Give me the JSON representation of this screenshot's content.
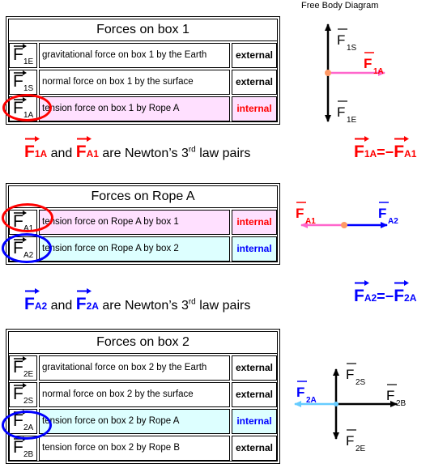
{
  "fbd_title": "Free Body Diagram",
  "box1": {
    "title": "Forces on box 1",
    "rows": [
      {
        "sub": "1E",
        "desc": "gravitational force on box 1 by the Earth",
        "kind": "external"
      },
      {
        "sub": "1S",
        "desc": "normal force on box 1 by the surface",
        "kind": "external"
      },
      {
        "sub": "1A",
        "desc": "tension force on box 1 by Rope A",
        "kind": "internal"
      }
    ]
  },
  "ropeA": {
    "title": "Forces on Rope A",
    "rows": [
      {
        "sub": "A1",
        "desc": "tension force on Rope A by box 1",
        "kind": "internal"
      },
      {
        "sub": "A2",
        "desc": "tension force on Rope A by box 2",
        "kind": "internal"
      }
    ]
  },
  "box2": {
    "title": "Forces on box 2",
    "rows": [
      {
        "sub": "2E",
        "desc": "gravitational force on box 2 by the Earth",
        "kind": "external"
      },
      {
        "sub": "2S",
        "desc": "normal force on box 2 by the surface",
        "kind": "external"
      },
      {
        "sub": "2A",
        "desc": "tension force on box 2 by Rope A",
        "kind": "internal"
      },
      {
        "sub": "2B",
        "desc": "tension force on box 2 by Rope B",
        "kind": "external"
      }
    ]
  },
  "law1": {
    "left_sub": "1A",
    "right_sub": "A1",
    "and": "and",
    "text": "are Newton’s 3",
    "sup": "rd",
    "tail": "law pairs"
  },
  "law2": {
    "left_sub": "A2",
    "right_sub": "2A",
    "and": "and",
    "text": "are Newton’s 3",
    "sup": "rd",
    "tail": "law pairs"
  },
  "eq1": {
    "left_sub": "1A",
    "op": "=−",
    "right": "F",
    "right_sub": "A1"
  },
  "eq2": {
    "left_sub": "A2",
    "op": "=−",
    "right": "F",
    "right_sub": "2A"
  },
  "fbd1": {
    "up": "1S",
    "down": "1E",
    "right": "1A"
  },
  "fbd2": {
    "left": "A1",
    "right": "A2"
  },
  "fbd3": {
    "up": "2S",
    "down": "2E",
    "left": "2A",
    "right": "2B"
  },
  "symbol": "F",
  "colors": {
    "red": "#ff0000",
    "blue": "#0000ff",
    "pink": "#ff66cc",
    "cyan": "#66ccff",
    "pink_bg": "#ffe0ff",
    "cyan_bg": "#ddffff",
    "dot": "#ff9966"
  }
}
